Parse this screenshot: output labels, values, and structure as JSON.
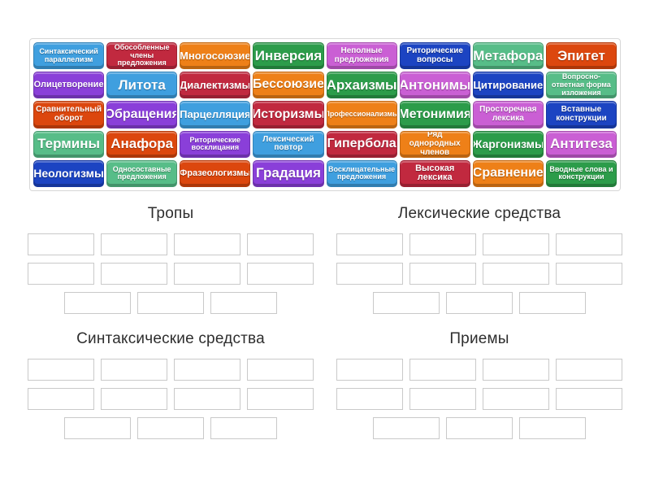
{
  "palette": {
    "blue": "#3f9fdf",
    "dark_blue": "#1c44c2",
    "crimson": "#c1293f",
    "orange": "#ee8018",
    "orange_red": "#dc470e",
    "green": "#2c9c4a",
    "sea_green": "#57bd88",
    "orchid": "#ca5fd4",
    "violet": "#8a3fd9",
    "board_border": "#d7d7d7",
    "slot_border": "#c9c9c9",
    "title_text": "#2e2e2e",
    "tile_text": "#ffffff"
  },
  "board": {
    "tiles": [
      {
        "label": "Синтаксический параллелизм",
        "color": "blue"
      },
      {
        "label": "Обособленные члены предложения",
        "color": "crimson"
      },
      {
        "label": "Многосоюзие",
        "color": "orange"
      },
      {
        "label": "Инверсия",
        "color": "green"
      },
      {
        "label": "Неполные предложения",
        "color": "orchid"
      },
      {
        "label": "Риторические вопросы",
        "color": "dark_blue"
      },
      {
        "label": "Метафора",
        "color": "sea_green"
      },
      {
        "label": "Эпитет",
        "color": "orange_red"
      },
      {
        "label": "Олицетворение",
        "color": "violet"
      },
      {
        "label": "Литота",
        "color": "blue"
      },
      {
        "label": "Диалектизмы",
        "color": "crimson"
      },
      {
        "label": "Бессоюзие",
        "color": "orange"
      },
      {
        "label": "Архаизмы",
        "color": "green"
      },
      {
        "label": "Антонимы",
        "color": "orchid"
      },
      {
        "label": "Цитирование",
        "color": "dark_blue"
      },
      {
        "label": "Вопросно-ответная форма изложения",
        "color": "sea_green"
      },
      {
        "label": "Сравнительный оборот",
        "color": "orange_red"
      },
      {
        "label": "Обращения",
        "color": "violet"
      },
      {
        "label": "Парцелляция",
        "color": "blue"
      },
      {
        "label": "Историзмы",
        "color": "crimson"
      },
      {
        "label": "Профессионализмы",
        "color": "orange"
      },
      {
        "label": "Метонимия",
        "color": "green"
      },
      {
        "label": "Просторечная лексика",
        "color": "orchid"
      },
      {
        "label": "Вставные конструкции",
        "color": "dark_blue"
      },
      {
        "label": "Термины",
        "color": "sea_green"
      },
      {
        "label": "Анафора",
        "color": "orange_red"
      },
      {
        "label": "Риторические восклицания",
        "color": "violet"
      },
      {
        "label": "Лексический повтор",
        "color": "blue"
      },
      {
        "label": "Гипербола",
        "color": "crimson"
      },
      {
        "label": "Ряд однородных членов",
        "color": "orange"
      },
      {
        "label": "Жаргонизмы",
        "color": "green"
      },
      {
        "label": "Антитеза",
        "color": "orchid"
      },
      {
        "label": "Неологизмы",
        "color": "dark_blue"
      },
      {
        "label": "Односоставные предложения",
        "color": "sea_green"
      },
      {
        "label": "Фразеологизмы",
        "color": "orange_red"
      },
      {
        "label": "Градация",
        "color": "violet"
      },
      {
        "label": "Восклицательные предложения",
        "color": "blue"
      },
      {
        "label": "Высокая лексика",
        "color": "crimson"
      },
      {
        "label": "Сравнение",
        "color": "orange"
      },
      {
        "label": "Вводные слова и конструкции",
        "color": "green"
      }
    ]
  },
  "groups": [
    {
      "title": "Тропы",
      "slot_rows": [
        4,
        4,
        3
      ]
    },
    {
      "title": "Лексические средства",
      "slot_rows": [
        4,
        4,
        3
      ]
    },
    {
      "title": "Синтаксические средства",
      "slot_rows": [
        4,
        4,
        3
      ]
    },
    {
      "title": "Приемы",
      "slot_rows": [
        4,
        4,
        3
      ]
    }
  ]
}
